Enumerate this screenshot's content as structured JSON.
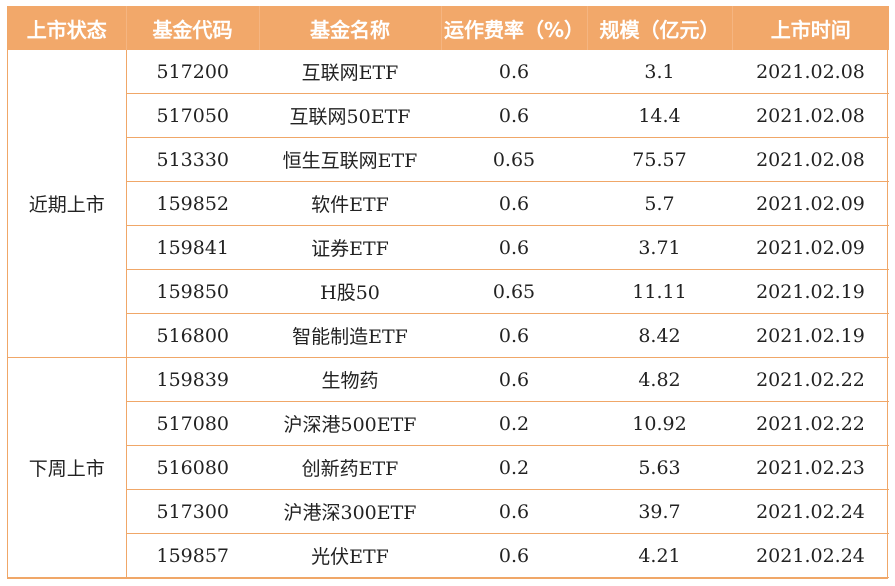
{
  "columns": [
    "上市状态",
    "基金代码",
    "基金名称",
    "运作费率（%）",
    "规模（亿元）",
    "上市时间"
  ],
  "groups": [
    {
      "status": "近期上市",
      "rows": [
        {
          "code": "517200",
          "name": "互联网ETF",
          "fee": "0.6",
          "size": "3.1",
          "date": "2021.02.08"
        },
        {
          "code": "517050",
          "name": "互联网50ETF",
          "fee": "0.6",
          "size": "14.4",
          "date": "2021.02.08"
        },
        {
          "code": "513330",
          "name": "恒生互联网ETF",
          "fee": "0.65",
          "size": "75.57",
          "date": "2021.02.08"
        },
        {
          "code": "159852",
          "name": "软件ETF",
          "fee": "0.6",
          "size": "5.7",
          "date": "2021.02.09"
        },
        {
          "code": "159841",
          "name": "证券ETF",
          "fee": "0.6",
          "size": "3.71",
          "date": "2021.02.09"
        },
        {
          "code": "159850",
          "name": "H股50",
          "fee": "0.65",
          "size": "11.11",
          "date": "2021.02.19"
        },
        {
          "code": "516800",
          "name": "智能制造ETF",
          "fee": "0.6",
          "size": "8.42",
          "date": "2021.02.19"
        }
      ]
    },
    {
      "status": "下周上市",
      "rows": [
        {
          "code": "159839",
          "name": "生物药",
          "fee": "0.6",
          "size": "4.82",
          "date": "2021.02.22"
        },
        {
          "code": "517080",
          "name": "沪深港500ETF",
          "fee": "0.2",
          "size": "10.92",
          "date": "2021.02.22"
        },
        {
          "code": "516080",
          "name": "创新药ETF",
          "fee": "0.2",
          "size": "5.63",
          "date": "2021.02.23"
        },
        {
          "code": "517300",
          "name": "沪港深300ETF",
          "fee": "0.6",
          "size": "39.7",
          "date": "2021.02.24"
        },
        {
          "code": "159857",
          "name": "光伏ETF",
          "fee": "0.6",
          "size": "4.21",
          "date": "2021.02.24"
        }
      ]
    }
  ],
  "colors": {
    "header_bg": "#f2a86a",
    "header_text": "#ffffff",
    "rule": "#f0a768"
  }
}
